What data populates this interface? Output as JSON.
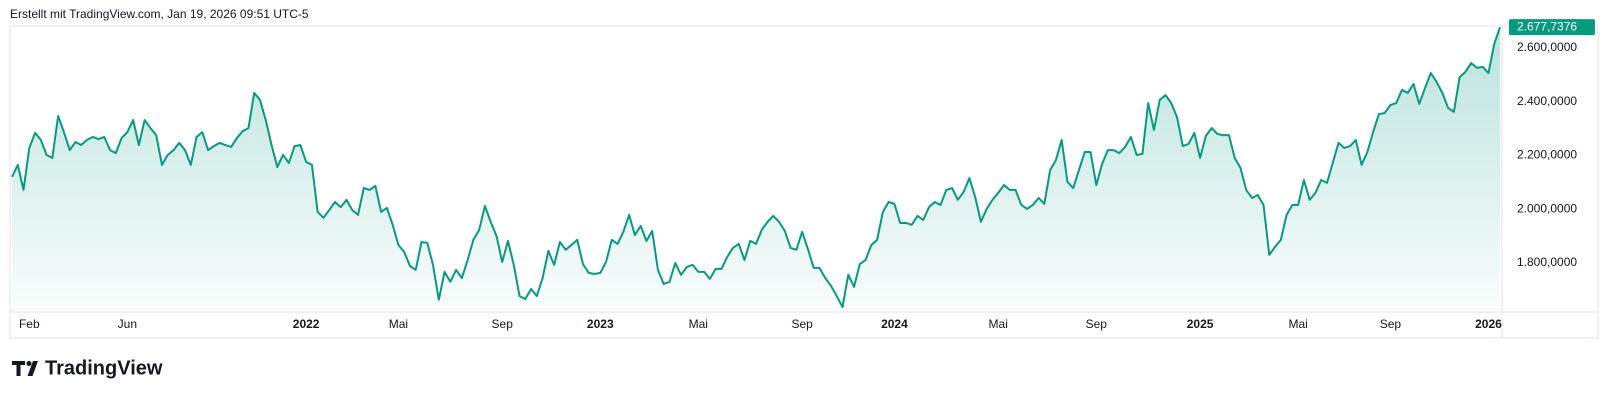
{
  "header": {
    "text": "Erstellt mit TradingView.com, Jan 19, 2026 09:51 UTC-5"
  },
  "footer": {
    "brand": "TradingView"
  },
  "chart_data": {
    "type": "area",
    "color": "#089981",
    "grid": false,
    "ylim": [
      1625,
      2682
    ],
    "yticks": [
      {
        "value": 1800,
        "label": "1.800,0000"
      },
      {
        "value": 2000,
        "label": "2.000,0000"
      },
      {
        "value": 2200,
        "label": "2.200,0000"
      },
      {
        "value": 2400,
        "label": "2.400,0000"
      },
      {
        "value": 2600,
        "label": "2.600,0000"
      }
    ],
    "categories": [
      null,
      null,
      null,
      "Feb",
      null,
      null,
      null,
      null,
      null,
      null,
      null,
      null,
      null,
      null,
      null,
      null,
      null,
      null,
      null,
      null,
      "Jun",
      null,
      null,
      null,
      null,
      null,
      null,
      null,
      null,
      null,
      null,
      null,
      null,
      null,
      null,
      null,
      null,
      null,
      null,
      null,
      null,
      null,
      null,
      null,
      null,
      null,
      null,
      null,
      null,
      null,
      null,
      "2022",
      null,
      null,
      null,
      null,
      null,
      null,
      null,
      null,
      null,
      null,
      null,
      null,
      null,
      null,
      null,
      "Mai",
      null,
      null,
      null,
      null,
      null,
      null,
      null,
      null,
      null,
      null,
      null,
      null,
      null,
      null,
      null,
      null,
      null,
      "Sep",
      null,
      null,
      null,
      null,
      null,
      null,
      null,
      null,
      null,
      null,
      null,
      null,
      null,
      null,
      null,
      null,
      "2023",
      null,
      null,
      null,
      null,
      null,
      null,
      null,
      null,
      null,
      null,
      null,
      null,
      null,
      null,
      null,
      null,
      "Mai",
      null,
      null,
      null,
      null,
      null,
      null,
      null,
      null,
      null,
      null,
      null,
      null,
      null,
      null,
      null,
      null,
      null,
      "Sep",
      null,
      null,
      null,
      null,
      null,
      null,
      null,
      null,
      null,
      null,
      null,
      null,
      null,
      null,
      null,
      "2024",
      null,
      null,
      null,
      null,
      null,
      null,
      null,
      null,
      null,
      null,
      null,
      null,
      null,
      null,
      null,
      null,
      null,
      "Mai",
      null,
      null,
      null,
      null,
      null,
      null,
      null,
      null,
      null,
      null,
      null,
      null,
      null,
      null,
      null,
      null,
      "Sep",
      null,
      null,
      null,
      null,
      null,
      null,
      null,
      null,
      null,
      null,
      null,
      null,
      null,
      null,
      null,
      null,
      null,
      "2025",
      null,
      null,
      null,
      null,
      null,
      null,
      null,
      null,
      null,
      null,
      null,
      null,
      null,
      null,
      null,
      null,
      "Mai",
      null,
      null,
      null,
      null,
      null,
      null,
      null,
      null,
      null,
      null,
      null,
      null,
      null,
      null,
      null,
      "Sep",
      null,
      null,
      null,
      null,
      null,
      null,
      null,
      null,
      null,
      null,
      null,
      null,
      null,
      null,
      null,
      null,
      "2026",
      null,
      null
    ],
    "values": [
      2120,
      2165,
      2072,
      2228,
      2284,
      2258,
      2202,
      2191,
      2347,
      2287,
      2220,
      2250,
      2239,
      2258,
      2269,
      2261,
      2269,
      2220,
      2209,
      2265,
      2287,
      2332,
      2239,
      2332,
      2302,
      2276,
      2165,
      2202,
      2220,
      2247,
      2220,
      2165,
      2269,
      2287,
      2220,
      2235,
      2247,
      2239,
      2232,
      2265,
      2291,
      2302,
      2433,
      2407,
      2332,
      2239,
      2157,
      2202,
      2172,
      2235,
      2239,
      2176,
      2165,
      1990,
      1968,
      1997,
      2027,
      2008,
      2035,
      1997,
      1979,
      2079,
      2072,
      2087,
      1990,
      2005,
      1942,
      1867,
      1841,
      1789,
      1774,
      1878,
      1875,
      1793,
      1663,
      1767,
      1730,
      1774,
      1744,
      1811,
      1886,
      1923,
      2012,
      1953,
      1901,
      1804,
      1882,
      1793,
      1677,
      1666,
      1703,
      1677,
      1744,
      1845,
      1793,
      1878,
      1849,
      1867,
      1886,
      1796,
      1763,
      1759,
      1763,
      1804,
      1886,
      1871,
      1916,
      1979,
      1904,
      1938,
      1882,
      1919,
      1774,
      1722,
      1730,
      1800,
      1756,
      1785,
      1793,
      1767,
      1767,
      1741,
      1778,
      1778,
      1822,
      1856,
      1871,
      1811,
      1882,
      1871,
      1923,
      1953,
      1975,
      1953,
      1919,
      1856,
      1849,
      1916,
      1852,
      1782,
      1782,
      1744,
      1715,
      1677,
      1636,
      1756,
      1711,
      1796,
      1811,
      1867,
      1886,
      1990,
      2027,
      2020,
      1949,
      1949,
      1942,
      1975,
      1960,
      2008,
      2027,
      2016,
      2072,
      2079,
      2035,
      2064,
      2116,
      2046,
      1953,
      2001,
      2035,
      2061,
      2090,
      2072,
      2072,
      2016,
      2001,
      2016,
      2042,
      2020,
      2146,
      2183,
      2258,
      2102,
      2079,
      2146,
      2213,
      2213,
      2090,
      2168,
      2220,
      2220,
      2209,
      2232,
      2269,
      2202,
      2206,
      2395,
      2295,
      2407,
      2425,
      2395,
      2343,
      2235,
      2243,
      2284,
      2191,
      2273,
      2302,
      2280,
      2276,
      2276,
      2191,
      2154,
      2072,
      2042,
      2053,
      2016,
      1830,
      1860,
      1886,
      1979,
      2016,
      2016,
      2109,
      2035,
      2061,
      2109,
      2098,
      2172,
      2247,
      2228,
      2235,
      2258,
      2165,
      2213,
      2287,
      2354,
      2358,
      2388,
      2395,
      2444,
      2433,
      2466,
      2392,
      2451,
      2507,
      2474,
      2433,
      2377,
      2362,
      2492,
      2511,
      2544,
      2526,
      2530,
      2507,
      2615,
      2677.7376
    ],
    "value_labels": [
      null,
      null,
      null,
      null,
      null,
      null,
      null,
      null,
      null,
      null,
      null,
      null,
      null,
      null,
      null,
      null,
      null,
      null,
      null,
      null,
      null,
      null,
      null,
      null,
      null,
      null,
      null,
      null,
      null,
      null,
      null,
      null,
      null,
      null,
      null,
      null,
      null,
      null,
      null,
      null,
      null,
      null,
      null,
      null,
      null,
      null,
      null,
      null,
      null,
      null,
      null,
      null,
      null,
      null,
      null,
      null,
      null,
      null,
      null,
      null,
      null,
      null,
      null,
      null,
      null,
      null,
      null,
      null,
      null,
      null,
      null,
      null,
      null,
      null,
      null,
      null,
      null,
      null,
      null,
      null,
      null,
      null,
      null,
      null,
      null,
      null,
      null,
      null,
      null,
      null,
      null,
      null,
      null,
      null,
      null,
      null,
      null,
      null,
      null,
      null,
      null,
      null,
      null,
      null,
      null,
      null,
      null,
      null,
      null,
      null,
      null,
      null,
      null,
      null,
      null,
      null,
      null,
      null,
      null,
      null,
      null,
      null,
      null,
      null,
      null,
      null,
      null,
      null,
      null,
      null,
      null,
      null,
      null,
      null,
      null,
      null,
      null,
      null,
      null,
      null,
      null,
      null,
      null,
      null,
      null,
      null,
      null,
      null,
      null,
      null,
      null,
      null,
      null,
      null,
      null,
      null,
      null,
      null,
      null,
      null,
      null,
      null,
      null,
      null,
      null,
      null,
      null,
      null,
      null,
      null,
      null,
      null,
      null,
      null,
      null,
      null,
      null,
      null,
      null,
      null,
      null,
      null,
      null,
      null,
      null,
      null,
      null,
      null,
      null,
      null,
      null,
      null,
      null,
      null,
      null,
      null,
      null,
      null,
      null,
      null,
      null,
      null,
      null,
      null,
      null,
      null,
      null,
      null,
      null,
      null,
      null,
      null,
      null,
      null,
      null,
      null,
      null,
      null,
      null,
      null,
      null,
      null,
      null,
      null,
      null,
      null,
      null,
      null,
      null,
      null,
      null,
      null,
      null,
      null,
      null,
      null,
      null,
      null,
      null,
      null,
      null,
      null,
      null,
      null,
      null,
      null,
      null,
      null,
      null,
      null,
      null,
      null,
      null,
      null,
      null,
      null,
      null,
      null,
      "2.677,7376"
    ]
  }
}
